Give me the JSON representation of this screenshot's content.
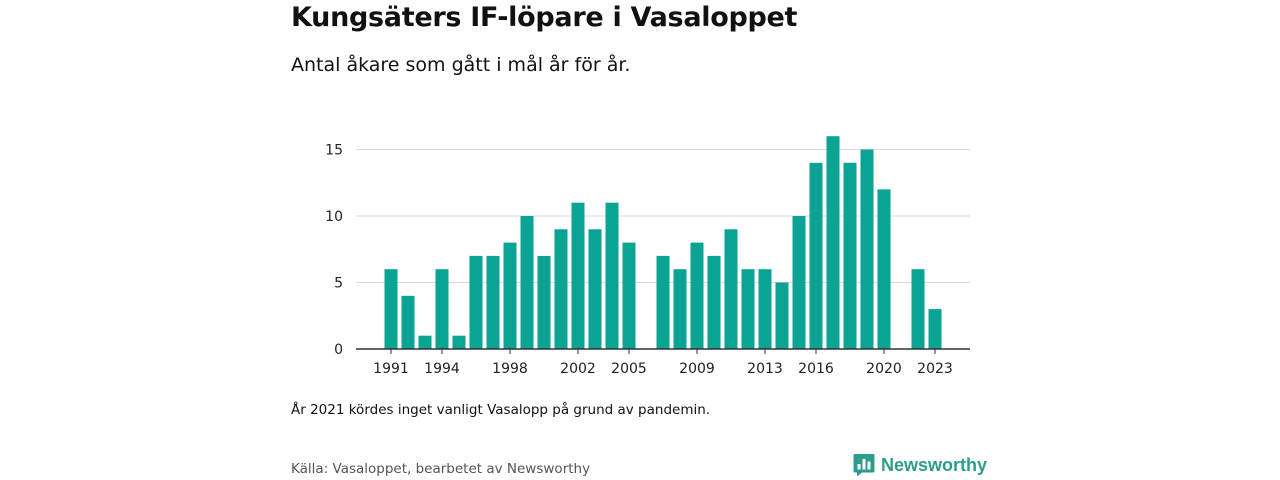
{
  "title": "Kungsäters IF-löpare i Vasaloppet",
  "subtitle": "Antal åkare som gått i mål år för år.",
  "note": "År 2021 kördes inget vanligt Vasalopp på grund av pandemin.",
  "source": "Källa: Vasaloppet, bearbetet av Newsworthy",
  "brand": {
    "name": "Newsworthy",
    "color": "#2c9c8c",
    "icon": "bar-chart-speech-bubble-icon"
  },
  "colors": {
    "bar": "#0aa394",
    "grid": "#d9d9d9",
    "axis": "#333333"
  },
  "chart_data": {
    "type": "bar",
    "title": "Kungsäters IF-löpare i Vasaloppet",
    "subtitle": "Antal åkare som gått i mål år för år.",
    "xlabel": "",
    "ylabel": "",
    "ylim": [
      0,
      16
    ],
    "yticks": [
      0,
      5,
      10,
      15
    ],
    "xtick_labels": [
      "1991",
      "1994",
      "1998",
      "2002",
      "2005",
      "2009",
      "2013",
      "2016",
      "2020",
      "2023"
    ],
    "grid": true,
    "categories": [
      1991,
      1992,
      1993,
      1994,
      1995,
      1996,
      1997,
      1998,
      1999,
      2000,
      2001,
      2002,
      2003,
      2004,
      2005,
      2006,
      2007,
      2008,
      2009,
      2010,
      2011,
      2012,
      2013,
      2014,
      2015,
      2016,
      2017,
      2018,
      2019,
      2020,
      2021,
      2022,
      2023
    ],
    "values": [
      6,
      4,
      1,
      6,
      1,
      7,
      7,
      8,
      10,
      7,
      9,
      11,
      9,
      11,
      8,
      null,
      7,
      6,
      8,
      7,
      9,
      6,
      6,
      5,
      10,
      14,
      16,
      14,
      15,
      12,
      null,
      6,
      3
    ]
  }
}
